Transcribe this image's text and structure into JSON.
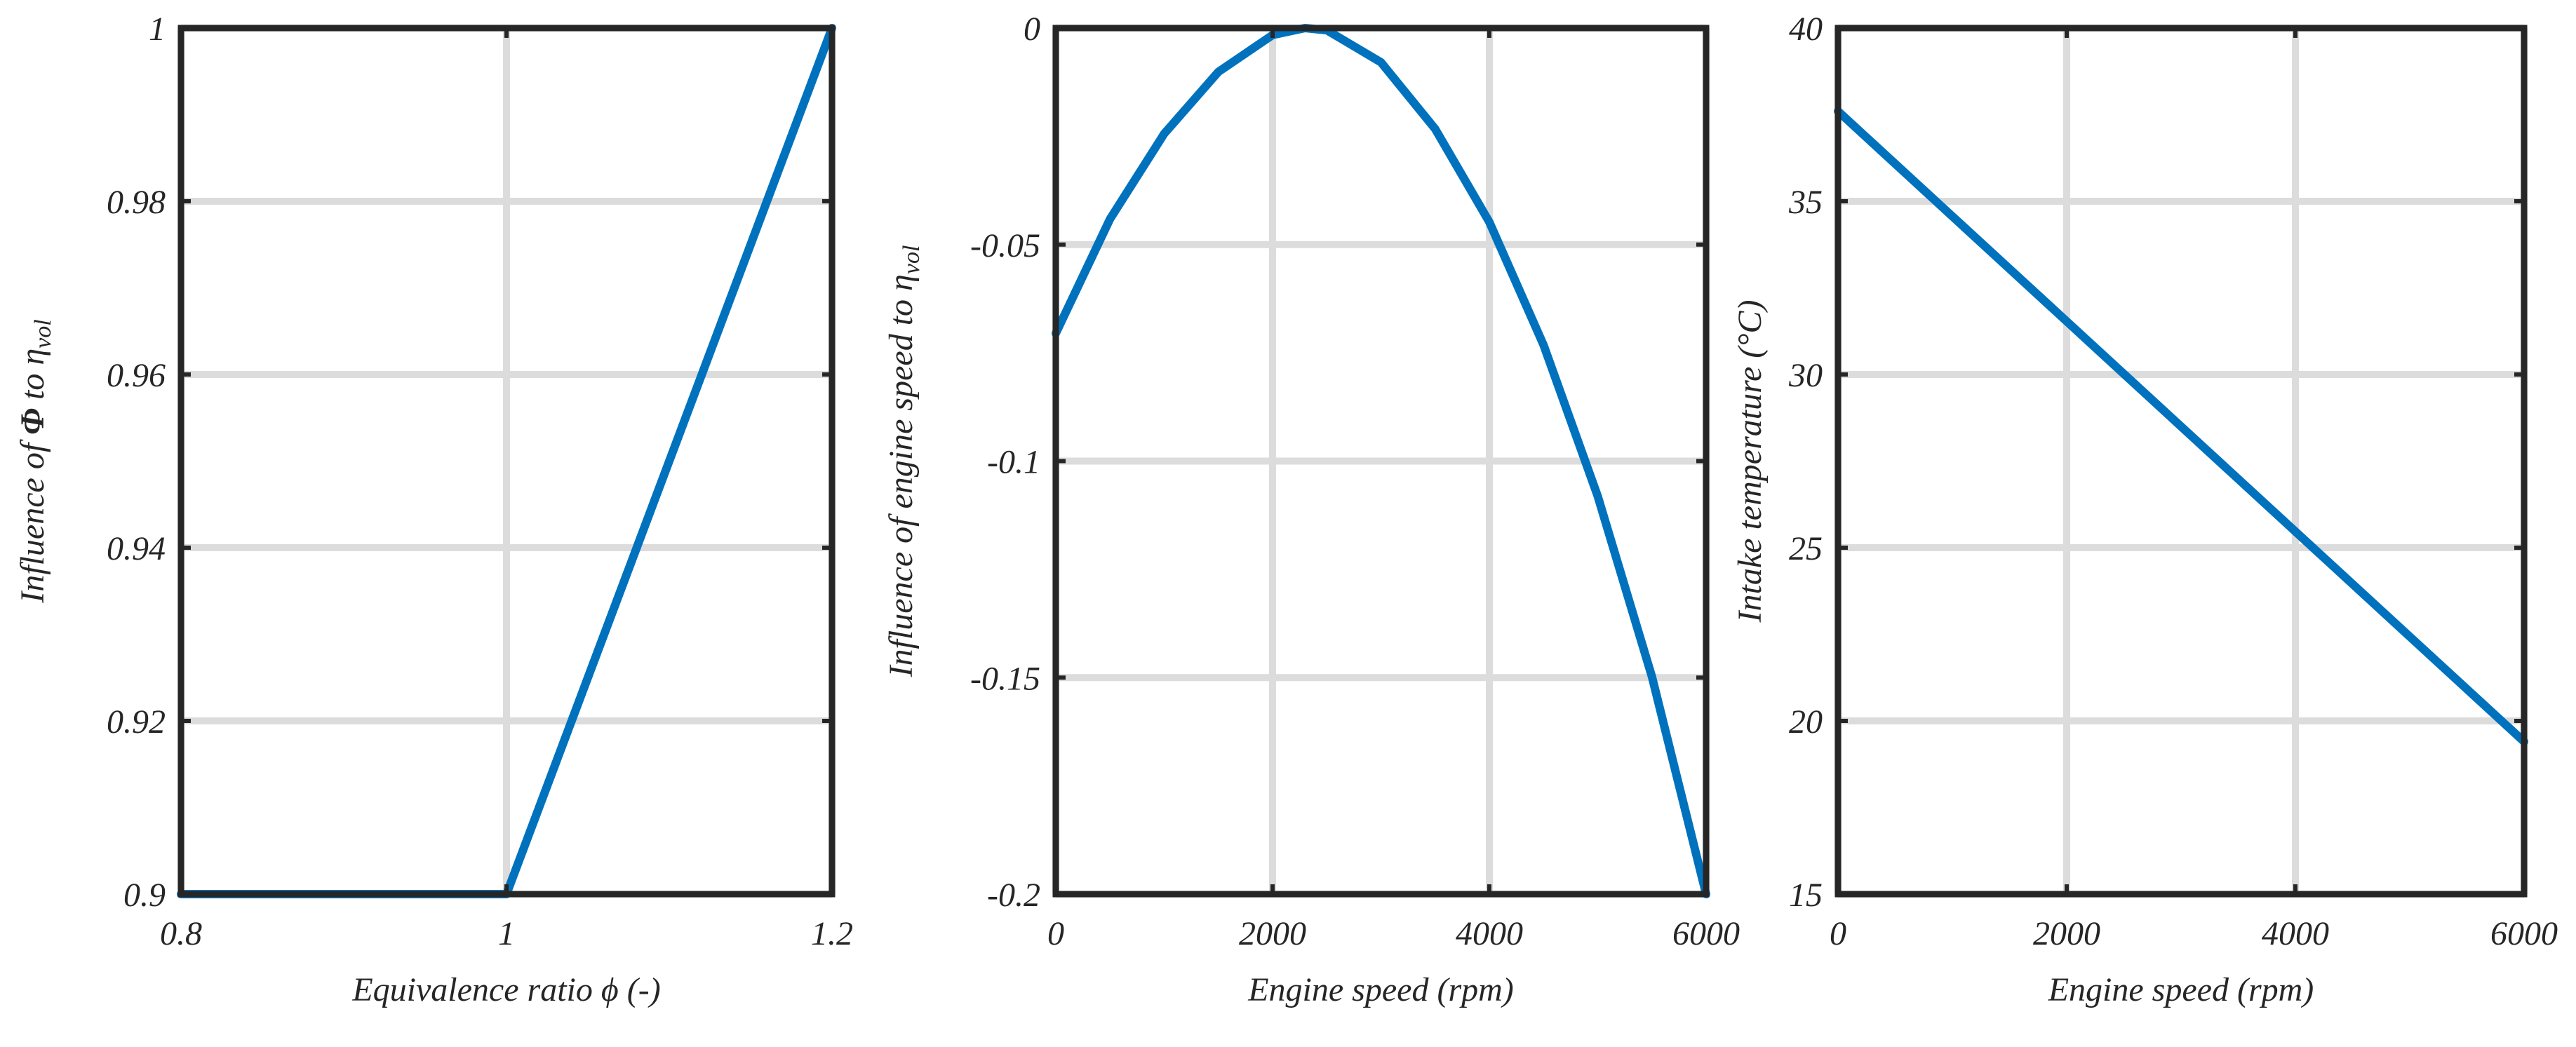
{
  "colors": {
    "line": "#0072bd",
    "grid": "#dcdcdc",
    "axis": "#262626"
  },
  "chart_data": [
    {
      "type": "line",
      "xlabel": "Equivalence ratio   ϕ (-)",
      "ylabel_parts": [
        "Influence of   ",
        "Φ",
        " to  ",
        "η",
        "vol"
      ],
      "xlim": [
        0.8,
        1.2
      ],
      "ylim": [
        0.9,
        1.0
      ],
      "xticks": [
        0.8,
        1,
        1.2
      ],
      "xtick_labels": [
        "0.8",
        "1",
        "1.2"
      ],
      "yticks": [
        0.9,
        0.92,
        0.94,
        0.96,
        0.98,
        1.0
      ],
      "ytick_labels": [
        "0.9",
        "0.92",
        "0.94",
        "0.96",
        "0.98",
        "1"
      ],
      "series": [
        {
          "name": "Influence of phi",
          "x": [
            0.8,
            1.0,
            1.2
          ],
          "y": [
            0.9,
            0.9,
            1.0
          ]
        }
      ]
    },
    {
      "type": "line",
      "xlabel": "Engine speed (rpm)",
      "ylabel_parts": [
        "Influence of engine speed to      ",
        "η",
        "vol"
      ],
      "xlim": [
        0,
        6000
      ],
      "ylim": [
        -0.2,
        0
      ],
      "xticks": [
        0,
        2000,
        4000,
        6000
      ],
      "xtick_labels": [
        "0",
        "2000",
        "4000",
        "6000"
      ],
      "yticks": [
        -0.2,
        -0.15,
        -0.1,
        -0.05,
        0
      ],
      "ytick_labels": [
        "-0.2",
        "-0.15",
        "-0.1",
        "-0.05",
        "0"
      ],
      "series": [
        {
          "name": "Influence of engine speed",
          "x": [
            0,
            500,
            1000,
            1500,
            2000,
            2300,
            2500,
            3000,
            3500,
            4000,
            4500,
            5000,
            5500,
            6000
          ],
          "y": [
            -0.0705,
            -0.0441,
            -0.0244,
            -0.0101,
            -0.0016,
            0.0,
            -0.0005,
            -0.0079,
            -0.0233,
            -0.0448,
            -0.0732,
            -0.1081,
            -0.1498,
            -0.2
          ]
        }
      ]
    },
    {
      "type": "line",
      "xlabel": "Engine speed (rpm)",
      "ylabel_parts": [
        "Intake temperature (°C)"
      ],
      "xlim": [
        0,
        6000
      ],
      "ylim": [
        15,
        40
      ],
      "xticks": [
        0,
        2000,
        4000,
        6000
      ],
      "xtick_labels": [
        "0",
        "2000",
        "4000",
        "6000"
      ],
      "yticks": [
        15,
        20,
        25,
        30,
        35,
        40
      ],
      "ytick_labels": [
        "15",
        "20",
        "25",
        "30",
        "35",
        "40"
      ],
      "series": [
        {
          "name": "Intake temperature",
          "x": [
            0,
            6000
          ],
          "y": [
            37.6,
            19.4
          ]
        }
      ]
    }
  ]
}
